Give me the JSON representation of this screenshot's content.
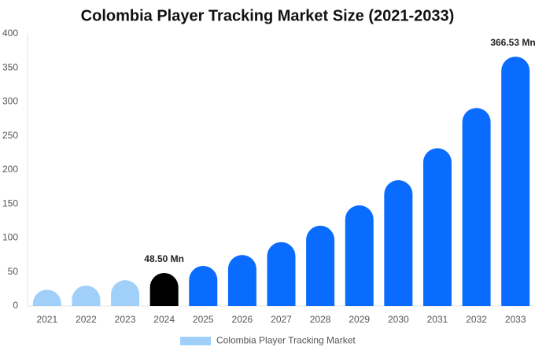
{
  "chart_data": {
    "type": "bar",
    "title": "Colombia Player Tracking Market Size (2021-2033)",
    "categories": [
      "2021",
      "2022",
      "2023",
      "2024",
      "2025",
      "2026",
      "2027",
      "2028",
      "2029",
      "2030",
      "2031",
      "2032",
      "2033"
    ],
    "series": [
      {
        "name": "Colombia Player Tracking Market",
        "color": "#a0cffa",
        "colors": [
          "#a0cffa",
          "#a0cffa",
          "#a0cffa",
          "#000000",
          "#0a6cff",
          "#0a6cff",
          "#0a6cff",
          "#0a6cff",
          "#0a6cff",
          "#0a6cff",
          "#0a6cff",
          "#0a6cff",
          "#0a6cff"
        ],
        "values": [
          24,
          30,
          38,
          48.5,
          59,
          75,
          94,
          118,
          148,
          185,
          232,
          291,
          366.53
        ],
        "value_labels": [
          null,
          null,
          null,
          "48.50 Mn",
          null,
          null,
          null,
          null,
          null,
          null,
          null,
          null,
          "366.53 Mn"
        ]
      }
    ],
    "ylim": [
      0,
      400
    ],
    "yticks": [
      0,
      50,
      100,
      150,
      200,
      250,
      300,
      350,
      400
    ],
    "grid": false
  }
}
